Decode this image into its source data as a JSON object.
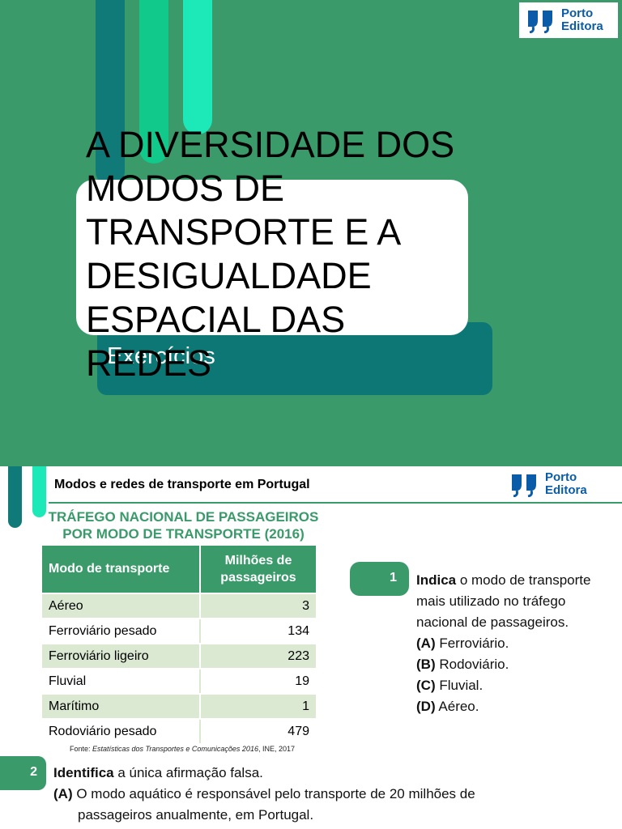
{
  "slide1": {
    "title": "A DIVERSIDADE DOS MODOS DE TRANSPORTE E A DESIGUALDADE ESPACIAL DAS REDES",
    "subtitle": "Exercícios"
  },
  "logo": {
    "line1": "Porto",
    "line2": "Editora"
  },
  "slide2": {
    "header": "Modos e redes de transporte em Portugal",
    "table_title_line1": "TRÁFEGO NACIONAL DE PASSAGEIROS",
    "table_title_line2": "POR MODO DE TRANSPORTE (2016)",
    "table": {
      "col1": "Modo de transporte",
      "col2": "Milhões de passageiros",
      "rows": [
        {
          "mode": "Aéreo",
          "value": "3"
        },
        {
          "mode": "Ferroviário pesado",
          "value": "134"
        },
        {
          "mode": "Ferroviário ligeiro",
          "value": "223"
        },
        {
          "mode": "Fluvial",
          "value": "19"
        },
        {
          "mode": "Marítimo",
          "value": "1"
        },
        {
          "mode": "Rodoviário pesado",
          "value": "479"
        }
      ]
    },
    "source": {
      "prefix": "Fonte: ",
      "italic": "Estatísticas dos Transportes e Comunicações 2016",
      "suffix": ", INE, 2017"
    },
    "q1": {
      "number": "1",
      "verb": "Indica",
      "text": " o modo de transporte mais utilizado no tráfego nacional de passageiros.",
      "options": [
        {
          "key": "(A)",
          "text": " Ferroviário."
        },
        {
          "key": "(B)",
          "text": " Rodoviário."
        },
        {
          "key": "(C)",
          "text": " Fluvial."
        },
        {
          "key": "(D)",
          "text": " Aéreo."
        }
      ]
    },
    "q2": {
      "number": "2",
      "verb": "Identifica",
      "text": " a única afirmação falsa.",
      "optionA_key": "(A)",
      "optionA_line1": " O modo aquático é responsável pelo transporte de 20 milhões de",
      "optionA_line2": "passageiros anualmente, em Portugal."
    }
  }
}
